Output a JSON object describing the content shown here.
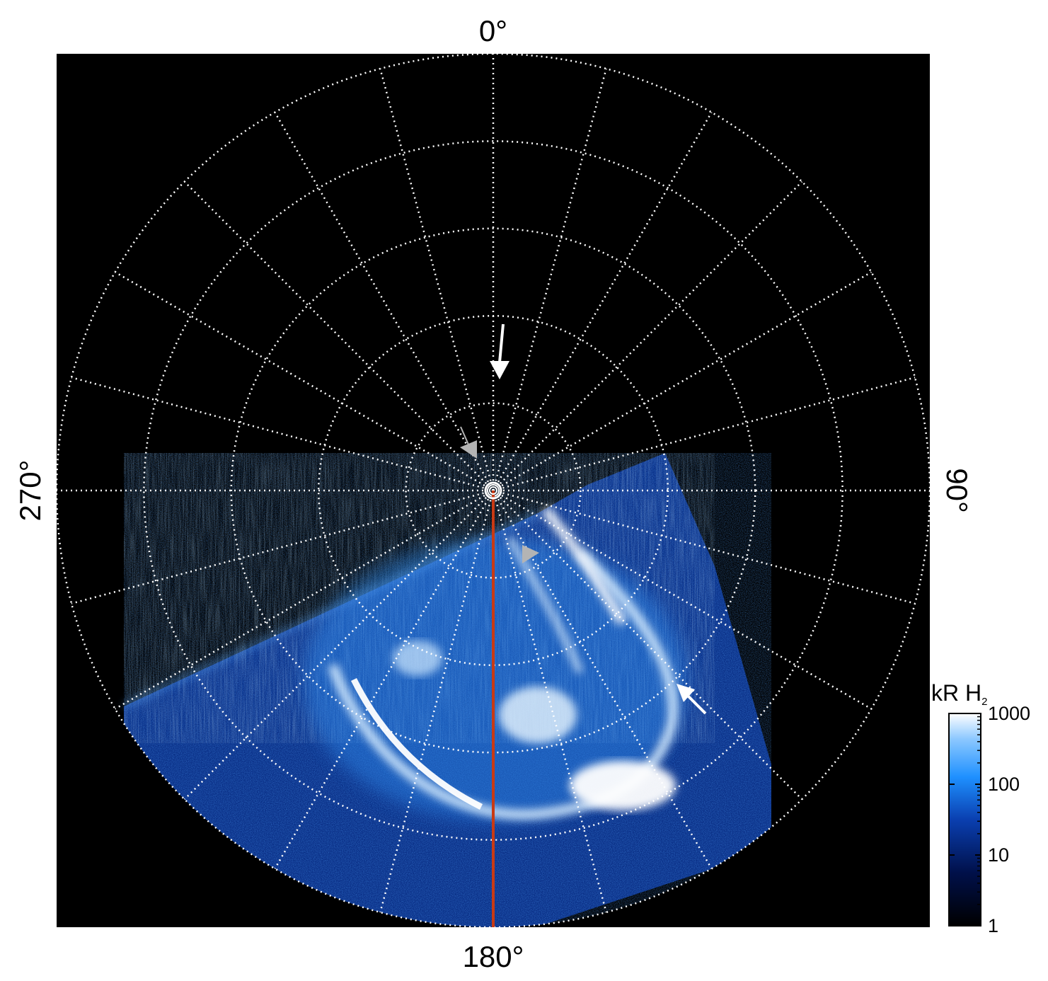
{
  "chart_data": {
    "type": "heatmap",
    "projection": "polar",
    "azimuth_labels": [
      {
        "angle": 0,
        "text": "0°"
      },
      {
        "angle": 90,
        "text": "90°"
      },
      {
        "angle": 180,
        "text": "180°"
      },
      {
        "angle": 270,
        "text": "270°"
      }
    ],
    "grid": true,
    "grid_style": "dotted",
    "rings": 5,
    "spokes_step_deg": 15,
    "colorbar": {
      "title_main": "kR H",
      "title_sub": "2",
      "scale": "log",
      "range": [
        1,
        1000
      ],
      "ticks": [
        {
          "value": 1000,
          "label": "1000"
        },
        {
          "value": 100,
          "label": "100"
        },
        {
          "value": 10,
          "label": "10"
        },
        {
          "value": 1,
          "label": "1"
        }
      ],
      "colors": [
        "#000000",
        "#00104a",
        "#0a3fb0",
        "#1e90ff",
        "#8cc8ff",
        "#ffffff"
      ]
    },
    "meridian_line": {
      "angle": 180,
      "color": "#c83a14"
    },
    "colors": {
      "background": "#000000",
      "emission_dim": "#0b3c9e",
      "emission_mid": "#2a8cf0",
      "emission_bright": "#cfe9ff",
      "grid": "#ffffff",
      "arrow_white": "#ffffff",
      "arrow_gray": "#b4b4b4"
    }
  }
}
